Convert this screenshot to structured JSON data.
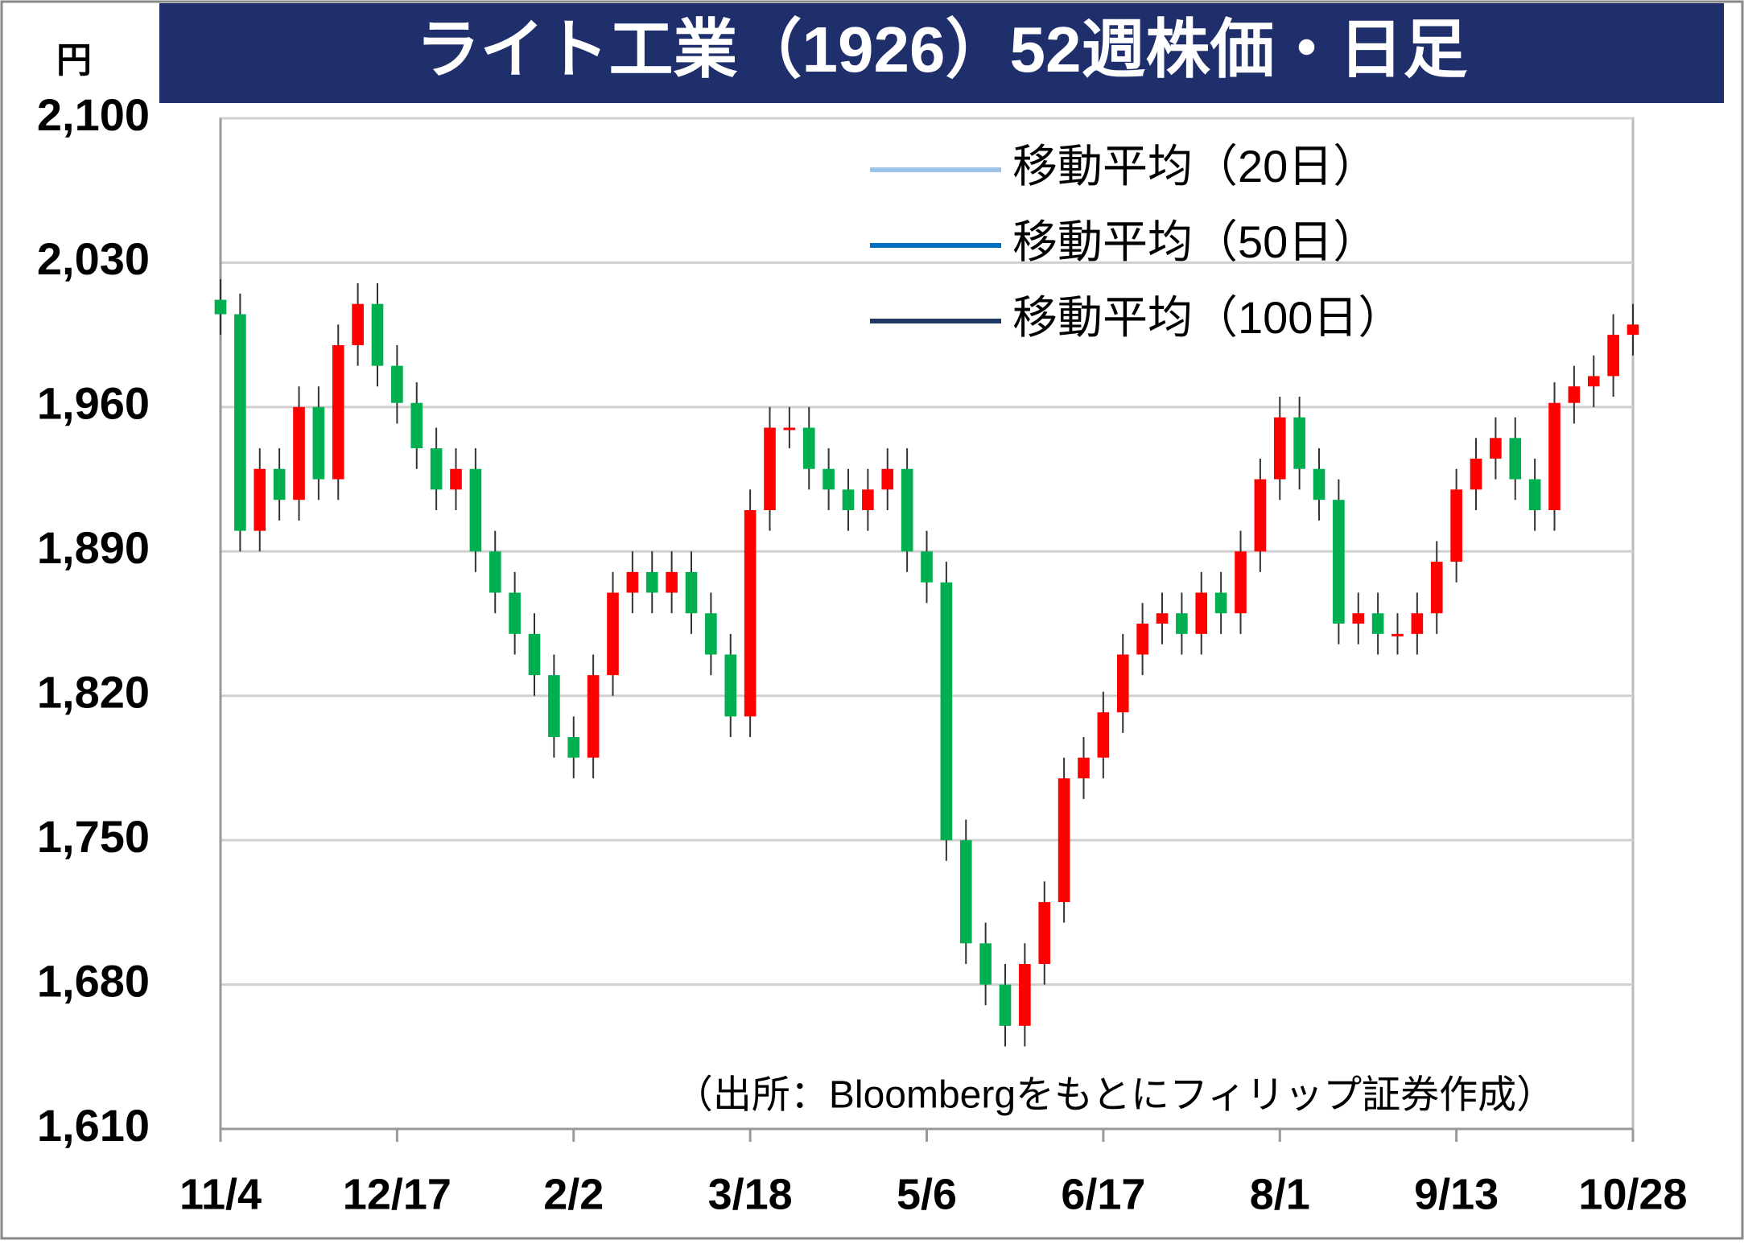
{
  "chart_data": {
    "type": "candlestick",
    "title": "ライト工業（1926）52週株価・日足",
    "y_unit": "円",
    "source": "（出所：Bloombergをもとにフィリップ証券作成）",
    "legend": [
      {
        "name": "移動平均（20日）",
        "color": "#9dc3e6"
      },
      {
        "name": "移動平均（50日）",
        "color": "#0070c0"
      },
      {
        "name": "移動平均（100日）",
        "color": "#1f3864"
      }
    ],
    "up_color": "#ff0000",
    "down_color": "#00b050",
    "categories": [
      "11/4",
      null,
      null,
      null,
      null,
      null,
      null,
      null,
      null,
      "12/17",
      null,
      null,
      null,
      null,
      null,
      null,
      null,
      null,
      "2/2",
      null,
      null,
      null,
      null,
      null,
      null,
      null,
      null,
      "3/18",
      null,
      null,
      null,
      null,
      null,
      null,
      null,
      null,
      "5/6",
      null,
      null,
      null,
      null,
      null,
      null,
      null,
      null,
      "6/17",
      null,
      null,
      null,
      null,
      null,
      null,
      null,
      null,
      "8/1",
      null,
      null,
      null,
      null,
      null,
      null,
      null,
      null,
      "9/13",
      null,
      null,
      null,
      null,
      null,
      null,
      null,
      null,
      "10/28"
    ],
    "open": [
      2012,
      2005,
      1900,
      1930,
      1915,
      1960,
      1925,
      1990,
      2010,
      1980,
      1962,
      1940,
      1920,
      1930,
      1890,
      1870,
      1850,
      1830,
      1800,
      1790,
      1830,
      1870,
      1880,
      1870,
      1880,
      1860,
      1840,
      1810,
      1910,
      1950,
      1950,
      1930,
      1920,
      1910,
      1920,
      1930,
      1890,
      1875,
      1750,
      1700,
      1680,
      1660,
      1690,
      1720,
      1780,
      1790,
      1812,
      1840,
      1855,
      1860,
      1850,
      1870,
      1860,
      1890,
      1925,
      1955,
      1930,
      1915,
      1855,
      1860,
      1850,
      1850,
      1860,
      1885,
      1920,
      1935,
      1945,
      1925,
      1910,
      1962,
      1970,
      1975,
      1995
    ],
    "high": [
      2022,
      2015,
      1940,
      1940,
      1970,
      1970,
      2000,
      2020,
      2020,
      1990,
      1972,
      1950,
      1940,
      1940,
      1900,
      1880,
      1860,
      1840,
      1810,
      1840,
      1880,
      1890,
      1890,
      1890,
      1890,
      1870,
      1850,
      1920,
      1960,
      1960,
      1960,
      1940,
      1930,
      1930,
      1940,
      1940,
      1900,
      1885,
      1760,
      1710,
      1690,
      1700,
      1730,
      1790,
      1800,
      1822,
      1850,
      1865,
      1870,
      1870,
      1880,
      1880,
      1900,
      1935,
      1965,
      1965,
      1940,
      1925,
      1870,
      1870,
      1860,
      1870,
      1895,
      1930,
      1945,
      1955,
      1955,
      1935,
      1972,
      1980,
      1985,
      2005,
      2010
    ],
    "low": [
      1995,
      1890,
      1890,
      1905,
      1905,
      1915,
      1915,
      1980,
      1970,
      1952,
      1930,
      1910,
      1910,
      1880,
      1860,
      1840,
      1820,
      1790,
      1780,
      1780,
      1820,
      1860,
      1860,
      1860,
      1850,
      1830,
      1800,
      1800,
      1900,
      1940,
      1920,
      1910,
      1900,
      1900,
      1910,
      1880,
      1865,
      1740,
      1690,
      1670,
      1650,
      1650,
      1680,
      1710,
      1770,
      1780,
      1802,
      1830,
      1845,
      1840,
      1840,
      1850,
      1850,
      1880,
      1915,
      1920,
      1905,
      1845,
      1845,
      1840,
      1840,
      1840,
      1850,
      1875,
      1910,
      1925,
      1915,
      1900,
      1900,
      1952,
      1960,
      1965,
      1985
    ],
    "close": [
      2005,
      1900,
      1930,
      1915,
      1960,
      1925,
      1990,
      2010,
      1980,
      1962,
      1940,
      1920,
      1930,
      1890,
      1870,
      1850,
      1830,
      1800,
      1790,
      1830,
      1870,
      1880,
      1870,
      1880,
      1860,
      1840,
      1810,
      1910,
      1950,
      1950,
      1930,
      1920,
      1910,
      1920,
      1930,
      1890,
      1875,
      1750,
      1700,
      1680,
      1660,
      1690,
      1720,
      1780,
      1790,
      1812,
      1840,
      1855,
      1860,
      1850,
      1870,
      1860,
      1890,
      1925,
      1955,
      1930,
      1915,
      1855,
      1860,
      1850,
      1850,
      1860,
      1885,
      1920,
      1935,
      1945,
      1925,
      1910,
      1962,
      1970,
      1975,
      1995,
      2000
    ],
    "ylim": [
      1610,
      2100
    ],
    "yticks": [
      {
        "value": 1610,
        "label": "1,610"
      },
      {
        "value": 1680,
        "label": "1,680"
      },
      {
        "value": 1750,
        "label": "1,750"
      },
      {
        "value": 1820,
        "label": "1,820"
      },
      {
        "value": 1890,
        "label": "1,890"
      },
      {
        "value": 1960,
        "label": "1,960"
      },
      {
        "value": 2030,
        "label": "2,030"
      },
      {
        "value": 2100,
        "label": "2,100"
      }
    ],
    "grid": true
  }
}
